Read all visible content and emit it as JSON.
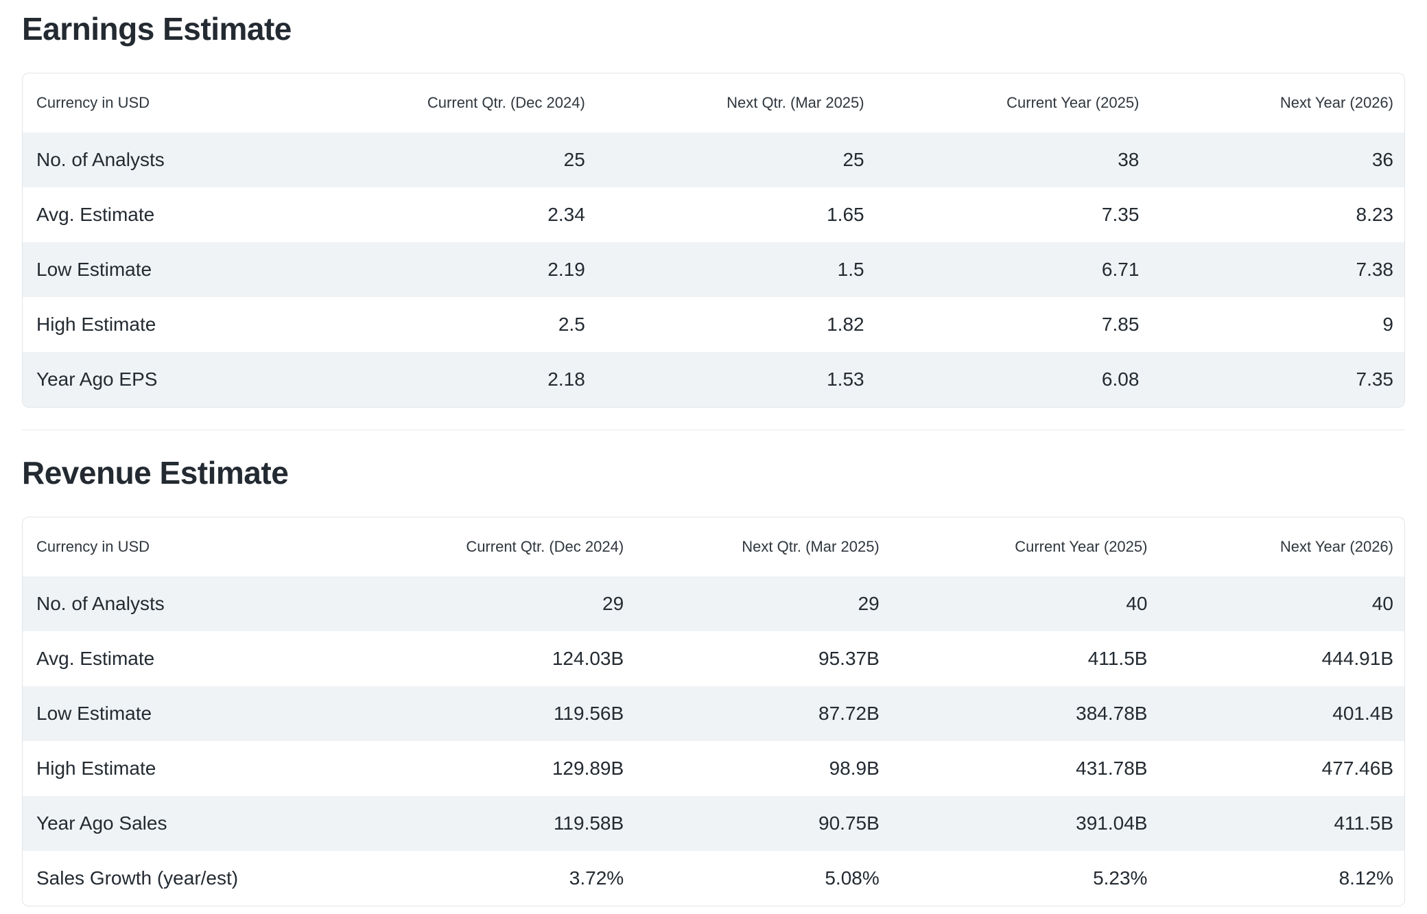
{
  "colors": {
    "page_background": "#ffffff",
    "heading_text": "#232a31",
    "cell_text": "#232a31",
    "column_header_text": "#2f363d",
    "stripe_row_background": "#f0f3f5",
    "card_border": "#e0e4e9",
    "section_divider": "#e6e9ec"
  },
  "sections": [
    {
      "title": "Earnings Estimate",
      "table": {
        "columns": [
          "Currency in USD",
          "Current Qtr. (Dec 2024)",
          "Next Qtr. (Mar 2025)",
          "Current Year (2025)",
          "Next Year (2026)"
        ],
        "rows": [
          {
            "label": "No. of Analysts",
            "values": [
              "25",
              "25",
              "38",
              "36"
            ]
          },
          {
            "label": "Avg. Estimate",
            "values": [
              "2.34",
              "1.65",
              "7.35",
              "8.23"
            ]
          },
          {
            "label": "Low Estimate",
            "values": [
              "2.19",
              "1.5",
              "6.71",
              "7.38"
            ]
          },
          {
            "label": "High Estimate",
            "values": [
              "2.5",
              "1.82",
              "7.85",
              "9"
            ]
          },
          {
            "label": "Year Ago EPS",
            "values": [
              "2.18",
              "1.53",
              "6.08",
              "7.35"
            ]
          }
        ]
      }
    },
    {
      "title": "Revenue Estimate",
      "table": {
        "columns": [
          "Currency in USD",
          "Current Qtr. (Dec 2024)",
          "Next Qtr. (Mar 2025)",
          "Current Year (2025)",
          "Next Year (2026)"
        ],
        "rows": [
          {
            "label": "No. of Analysts",
            "values": [
              "29",
              "29",
              "40",
              "40"
            ]
          },
          {
            "label": "Avg. Estimate",
            "values": [
              "124.03B",
              "95.37B",
              "411.5B",
              "444.91B"
            ]
          },
          {
            "label": "Low Estimate",
            "values": [
              "119.56B",
              "87.72B",
              "384.78B",
              "401.4B"
            ]
          },
          {
            "label": "High Estimate",
            "values": [
              "129.89B",
              "98.9B",
              "431.78B",
              "477.46B"
            ]
          },
          {
            "label": "Year Ago Sales",
            "values": [
              "119.58B",
              "90.75B",
              "391.04B",
              "411.5B"
            ]
          },
          {
            "label": "Sales Growth (year/est)",
            "values": [
              "3.72%",
              "5.08%",
              "5.23%",
              "8.12%"
            ]
          }
        ]
      }
    }
  ]
}
